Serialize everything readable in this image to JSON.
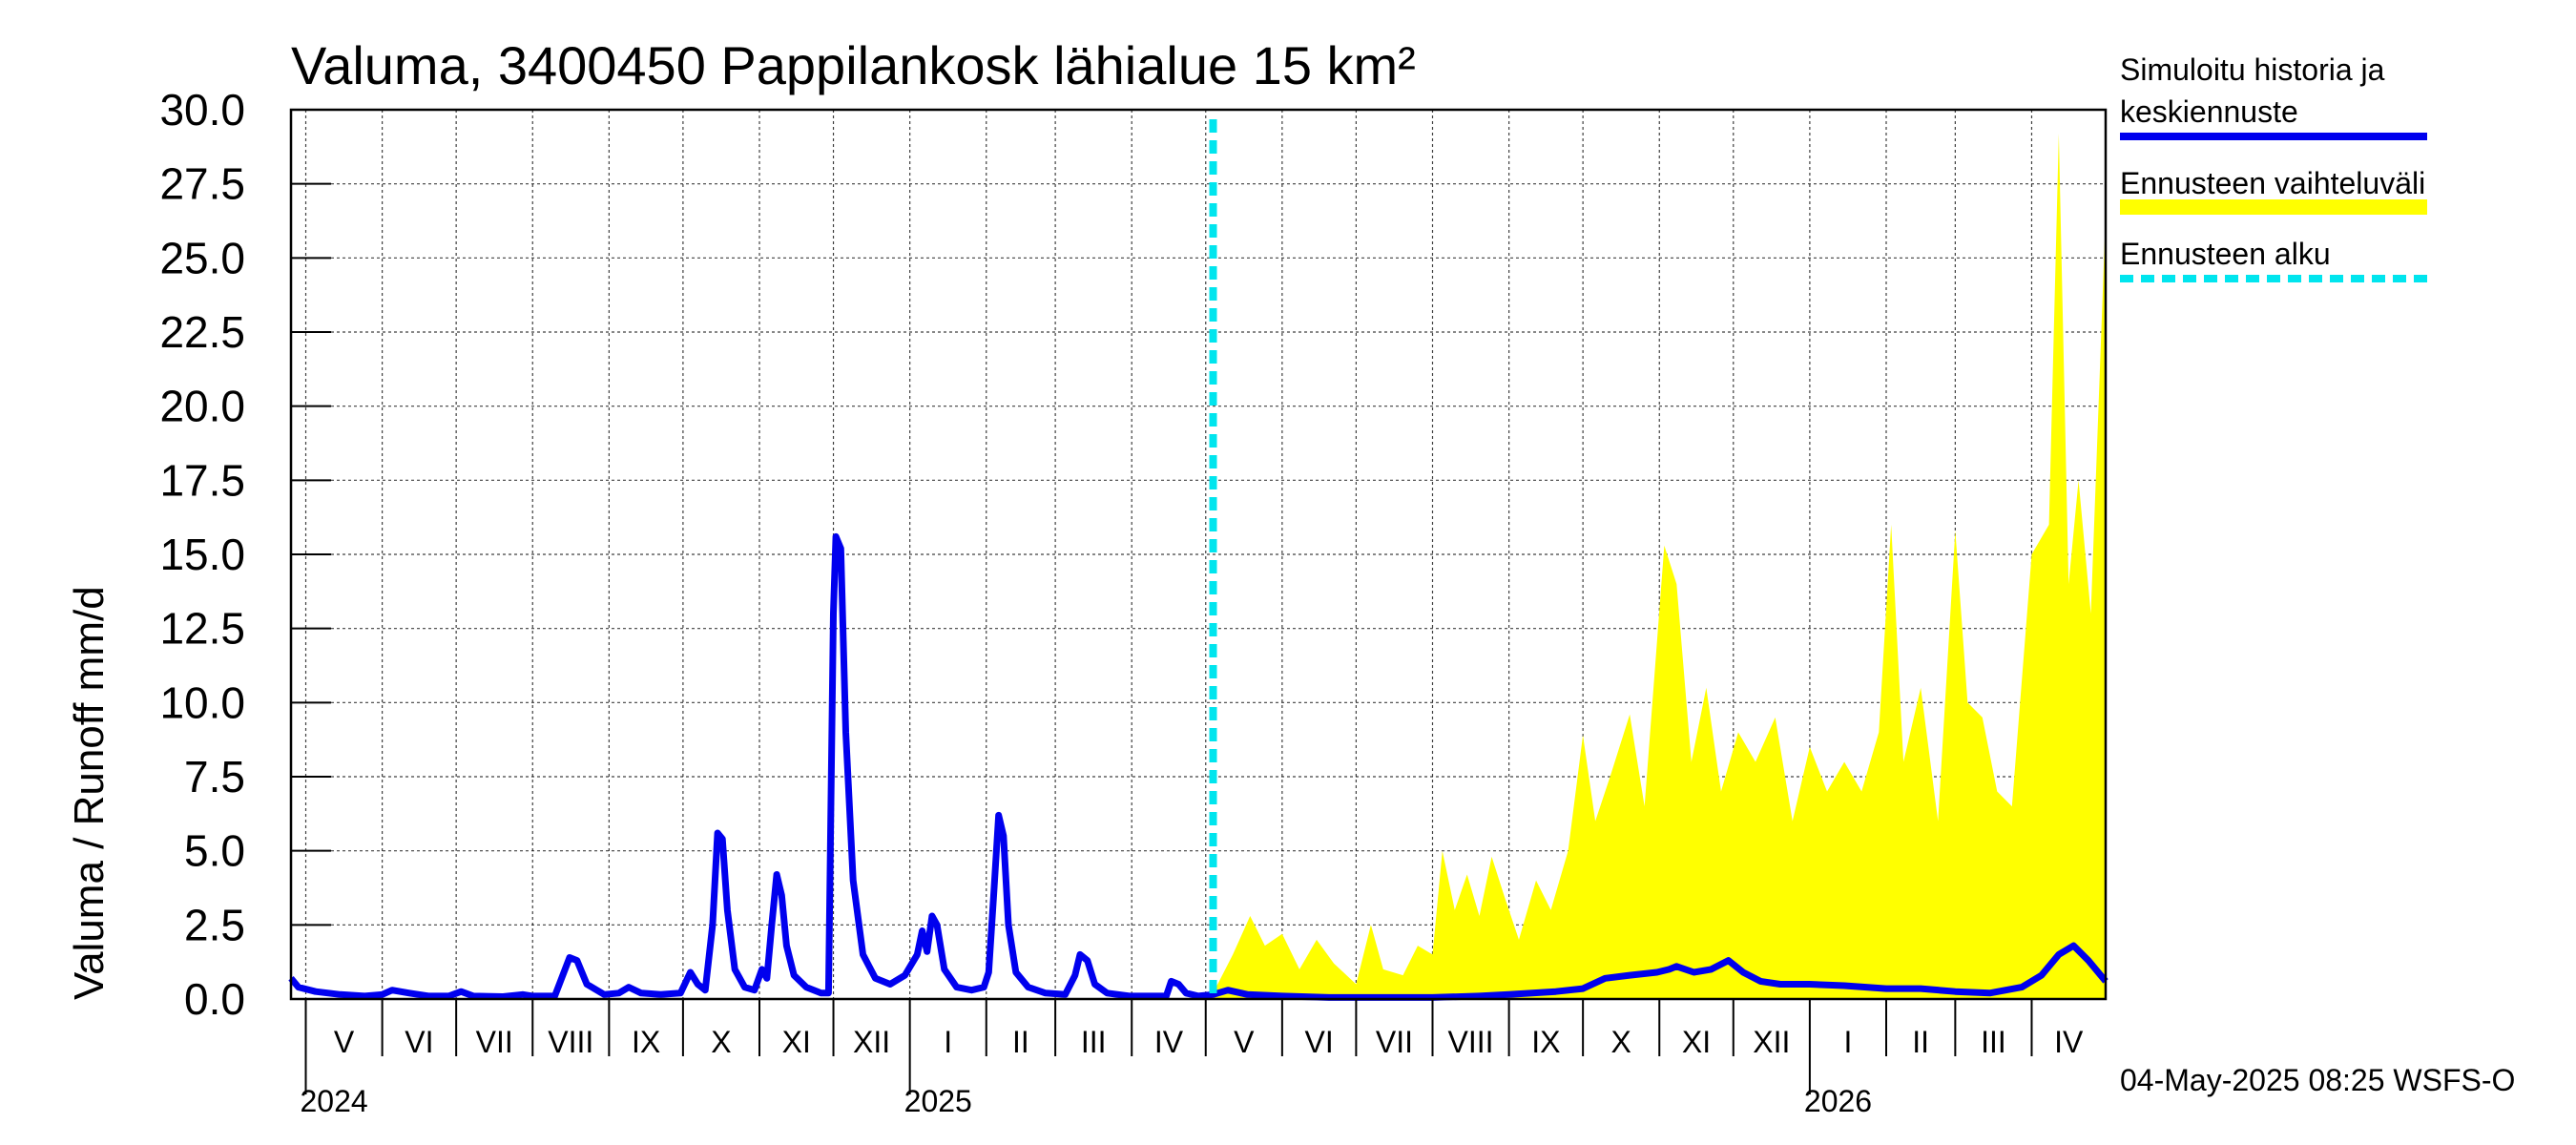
{
  "chart_data": {
    "type": "line",
    "title": "Valuma, 3400450 Pappilankosk lähialue 15 km²",
    "ylabel": "Valuma / Runoff     mm/d",
    "ylim": [
      0,
      30
    ],
    "yticks": [
      "0.0",
      "2.5",
      "5.0",
      "7.5",
      "10.0",
      "12.5",
      "15.0",
      "17.5",
      "20.0",
      "22.5",
      "25.0",
      "27.5",
      "30.0"
    ],
    "xlim": [
      "2024-04-25",
      "2026-05-01"
    ],
    "months": [
      {
        "label": "V",
        "start": "2024-05-01"
      },
      {
        "label": "VI",
        "start": "2024-06-01"
      },
      {
        "label": "VII",
        "start": "2024-07-01"
      },
      {
        "label": "VIII",
        "start": "2024-08-01"
      },
      {
        "label": "IX",
        "start": "2024-09-01"
      },
      {
        "label": "X",
        "start": "2024-10-01"
      },
      {
        "label": "XI",
        "start": "2024-11-01"
      },
      {
        "label": "XII",
        "start": "2024-12-01"
      },
      {
        "label": "I",
        "start": "2025-01-01"
      },
      {
        "label": "II",
        "start": "2025-02-01"
      },
      {
        "label": "III",
        "start": "2025-03-01"
      },
      {
        "label": "IV",
        "start": "2025-04-01"
      },
      {
        "label": "V",
        "start": "2025-05-01"
      },
      {
        "label": "VI",
        "start": "2025-06-01"
      },
      {
        "label": "VII",
        "start": "2025-07-01"
      },
      {
        "label": "VIII",
        "start": "2025-08-01"
      },
      {
        "label": "IX",
        "start": "2025-09-01"
      },
      {
        "label": "X",
        "start": "2025-10-01"
      },
      {
        "label": "XI",
        "start": "2025-11-01"
      },
      {
        "label": "XII",
        "start": "2025-12-01"
      },
      {
        "label": "I",
        "start": "2026-01-01"
      },
      {
        "label": "II",
        "start": "2026-02-01"
      },
      {
        "label": "III",
        "start": "2026-03-01"
      },
      {
        "label": "IV",
        "start": "2026-04-01"
      }
    ],
    "years": [
      {
        "label": "2024",
        "start": "2024-05-01"
      },
      {
        "label": "2025",
        "start": "2025-01-01"
      },
      {
        "label": "2026",
        "start": "2026-01-01"
      }
    ],
    "forecast_start": "2025-05-04",
    "legend": {
      "placement": "right",
      "entries": [
        {
          "name": "Simuloitu historia ja keskiennuste",
          "lines": [
            "Simuloitu historia ja",
            "keskiennuste"
          ],
          "color": "#0000ee",
          "style": "solid"
        },
        {
          "name": "Ennusteen vaihteluväli",
          "lines": [
            "Ennusteen vaihteluväli"
          ],
          "color": "#ffff00",
          "style": "band"
        },
        {
          "name": "Ennusteen alku",
          "lines": [
            "Ennusteen alku"
          ],
          "color": "#00e5ee",
          "style": "dashed"
        }
      ]
    },
    "series": [
      {
        "name": "Simuloitu historia ja keskiennuste",
        "color": "#0000ee",
        "points": [
          [
            "2024-04-25",
            0.7
          ],
          [
            "2024-04-28",
            0.4
          ],
          [
            "2024-05-05",
            0.25
          ],
          [
            "2024-05-15",
            0.15
          ],
          [
            "2024-05-25",
            0.1
          ],
          [
            "2024-06-01",
            0.15
          ],
          [
            "2024-06-05",
            0.3
          ],
          [
            "2024-06-12",
            0.2
          ],
          [
            "2024-06-20",
            0.1
          ],
          [
            "2024-06-28",
            0.1
          ],
          [
            "2024-07-03",
            0.25
          ],
          [
            "2024-07-08",
            0.1
          ],
          [
            "2024-07-20",
            0.08
          ],
          [
            "2024-07-28",
            0.15
          ],
          [
            "2024-08-01",
            0.1
          ],
          [
            "2024-08-10",
            0.1
          ],
          [
            "2024-08-16",
            1.4
          ],
          [
            "2024-08-19",
            1.3
          ],
          [
            "2024-08-23",
            0.5
          ],
          [
            "2024-08-30",
            0.15
          ],
          [
            "2024-09-05",
            0.2
          ],
          [
            "2024-09-09",
            0.4
          ],
          [
            "2024-09-14",
            0.2
          ],
          [
            "2024-09-22",
            0.15
          ],
          [
            "2024-09-30",
            0.2
          ],
          [
            "2024-10-04",
            0.9
          ],
          [
            "2024-10-07",
            0.5
          ],
          [
            "2024-10-10",
            0.3
          ],
          [
            "2024-10-13",
            2.5
          ],
          [
            "2024-10-15",
            5.6
          ],
          [
            "2024-10-17",
            5.4
          ],
          [
            "2024-10-19",
            3.0
          ],
          [
            "2024-10-22",
            1.0
          ],
          [
            "2024-10-26",
            0.4
          ],
          [
            "2024-10-30",
            0.3
          ],
          [
            "2024-11-02",
            1.0
          ],
          [
            "2024-11-04",
            0.7
          ],
          [
            "2024-11-06",
            2.5
          ],
          [
            "2024-11-08",
            4.2
          ],
          [
            "2024-11-10",
            3.5
          ],
          [
            "2024-11-12",
            1.8
          ],
          [
            "2024-11-15",
            0.8
          ],
          [
            "2024-11-20",
            0.4
          ],
          [
            "2024-11-26",
            0.2
          ],
          [
            "2024-11-29",
            0.2
          ],
          [
            "2024-12-01",
            13.0
          ],
          [
            "2024-12-02",
            15.6
          ],
          [
            "2024-12-04",
            15.2
          ],
          [
            "2024-12-06",
            9.0
          ],
          [
            "2024-12-09",
            4.0
          ],
          [
            "2024-12-13",
            1.5
          ],
          [
            "2024-12-18",
            0.7
          ],
          [
            "2024-12-24",
            0.5
          ],
          [
            "2024-12-30",
            0.8
          ],
          [
            "2025-01-04",
            1.5
          ],
          [
            "2025-01-06",
            2.3
          ],
          [
            "2025-01-08",
            1.6
          ],
          [
            "2025-01-10",
            2.8
          ],
          [
            "2025-01-12",
            2.5
          ],
          [
            "2025-01-15",
            1.0
          ],
          [
            "2025-01-20",
            0.4
          ],
          [
            "2025-01-26",
            0.3
          ],
          [
            "2025-01-31",
            0.4
          ],
          [
            "2025-02-02",
            0.9
          ],
          [
            "2025-02-04",
            3.5
          ],
          [
            "2025-02-06",
            6.2
          ],
          [
            "2025-02-08",
            5.5
          ],
          [
            "2025-02-10",
            2.5
          ],
          [
            "2025-02-13",
            0.9
          ],
          [
            "2025-02-18",
            0.4
          ],
          [
            "2025-02-25",
            0.2
          ],
          [
            "2025-03-05",
            0.15
          ],
          [
            "2025-03-09",
            0.8
          ],
          [
            "2025-03-11",
            1.5
          ],
          [
            "2025-03-14",
            1.3
          ],
          [
            "2025-03-17",
            0.5
          ],
          [
            "2025-03-22",
            0.2
          ],
          [
            "2025-03-31",
            0.1
          ],
          [
            "2025-04-10",
            0.1
          ],
          [
            "2025-04-15",
            0.1
          ],
          [
            "2025-04-17",
            0.6
          ],
          [
            "2025-04-20",
            0.5
          ],
          [
            "2025-04-23",
            0.2
          ],
          [
            "2025-04-28",
            0.1
          ],
          [
            "2025-05-04",
            0.15
          ],
          [
            "2025-05-10",
            0.3
          ],
          [
            "2025-05-18",
            0.15
          ],
          [
            "2025-06-01",
            0.1
          ],
          [
            "2025-06-20",
            0.05
          ],
          [
            "2025-07-10",
            0.05
          ],
          [
            "2025-08-01",
            0.05
          ],
          [
            "2025-08-20",
            0.1
          ],
          [
            "2025-09-01",
            0.15
          ],
          [
            "2025-09-20",
            0.25
          ],
          [
            "2025-10-01",
            0.35
          ],
          [
            "2025-10-10",
            0.7
          ],
          [
            "2025-10-20",
            0.8
          ],
          [
            "2025-10-31",
            0.9
          ],
          [
            "2025-11-05",
            1.0
          ],
          [
            "2025-11-08",
            1.1
          ],
          [
            "2025-11-15",
            0.9
          ],
          [
            "2025-11-22",
            1.0
          ],
          [
            "2025-11-29",
            1.3
          ],
          [
            "2025-12-05",
            0.9
          ],
          [
            "2025-12-12",
            0.6
          ],
          [
            "2025-12-20",
            0.5
          ],
          [
            "2026-01-01",
            0.5
          ],
          [
            "2026-01-15",
            0.45
          ],
          [
            "2026-02-01",
            0.35
          ],
          [
            "2026-02-15",
            0.35
          ],
          [
            "2026-03-01",
            0.25
          ],
          [
            "2026-03-15",
            0.2
          ],
          [
            "2026-03-28",
            0.4
          ],
          [
            "2026-04-05",
            0.8
          ],
          [
            "2026-04-12",
            1.5
          ],
          [
            "2026-04-18",
            1.8
          ],
          [
            "2026-04-24",
            1.3
          ],
          [
            "2026-05-01",
            0.6
          ]
        ]
      },
      {
        "name": "Ennusteen vaihteluväli",
        "color": "#ffff00",
        "points": [
          [
            "2025-05-04",
            0.2
          ],
          [
            "2025-05-12",
            1.5
          ],
          [
            "2025-05-19",
            2.8
          ],
          [
            "2025-05-25",
            1.8
          ],
          [
            "2025-06-01",
            2.2
          ],
          [
            "2025-06-08",
            1.0
          ],
          [
            "2025-06-15",
            2.0
          ],
          [
            "2025-06-22",
            1.2
          ],
          [
            "2025-07-01",
            0.5
          ],
          [
            "2025-07-07",
            2.5
          ],
          [
            "2025-07-12",
            1.0
          ],
          [
            "2025-07-20",
            0.8
          ],
          [
            "2025-07-26",
            1.8
          ],
          [
            "2025-08-01",
            1.5
          ],
          [
            "2025-08-05",
            5.0
          ],
          [
            "2025-08-10",
            3.0
          ],
          [
            "2025-08-15",
            4.2
          ],
          [
            "2025-08-20",
            2.8
          ],
          [
            "2025-08-25",
            4.8
          ],
          [
            "2025-08-30",
            3.5
          ],
          [
            "2025-09-05",
            2.0
          ],
          [
            "2025-09-12",
            4.0
          ],
          [
            "2025-09-18",
            3.0
          ],
          [
            "2025-09-25",
            5.0
          ],
          [
            "2025-10-01",
            8.9
          ],
          [
            "2025-10-06",
            6.0
          ],
          [
            "2025-10-12",
            7.5
          ],
          [
            "2025-10-20",
            9.6
          ],
          [
            "2025-10-26",
            6.5
          ],
          [
            "2025-11-03",
            15.3
          ],
          [
            "2025-11-08",
            14.0
          ],
          [
            "2025-11-14",
            8.0
          ],
          [
            "2025-11-20",
            10.5
          ],
          [
            "2025-11-26",
            7.0
          ],
          [
            "2025-12-03",
            9.0
          ],
          [
            "2025-12-10",
            8.0
          ],
          [
            "2025-12-18",
            9.5
          ],
          [
            "2025-12-25",
            6.0
          ],
          [
            "2026-01-01",
            8.5
          ],
          [
            "2026-01-08",
            7.0
          ],
          [
            "2026-01-15",
            8.0
          ],
          [
            "2026-01-22",
            7.0
          ],
          [
            "2026-01-29",
            9.0
          ],
          [
            "2026-02-03",
            16.0
          ],
          [
            "2026-02-08",
            8.0
          ],
          [
            "2026-02-15",
            10.5
          ],
          [
            "2026-02-22",
            6.0
          ],
          [
            "2026-03-01",
            15.8
          ],
          [
            "2026-03-06",
            10.0
          ],
          [
            "2026-03-12",
            9.5
          ],
          [
            "2026-03-18",
            7.0
          ],
          [
            "2026-03-24",
            6.5
          ],
          [
            "2026-04-01",
            15.0
          ],
          [
            "2026-04-08",
            16.0
          ],
          [
            "2026-04-12",
            29.2
          ],
          [
            "2026-04-16",
            14.0
          ],
          [
            "2026-04-20",
            17.5
          ],
          [
            "2026-04-25",
            13.0
          ],
          [
            "2026-05-01",
            26.5
          ]
        ]
      }
    ],
    "grid": true
  },
  "footer": {
    "timestamp": "04-May-2025 08:25 WSFS-O"
  }
}
